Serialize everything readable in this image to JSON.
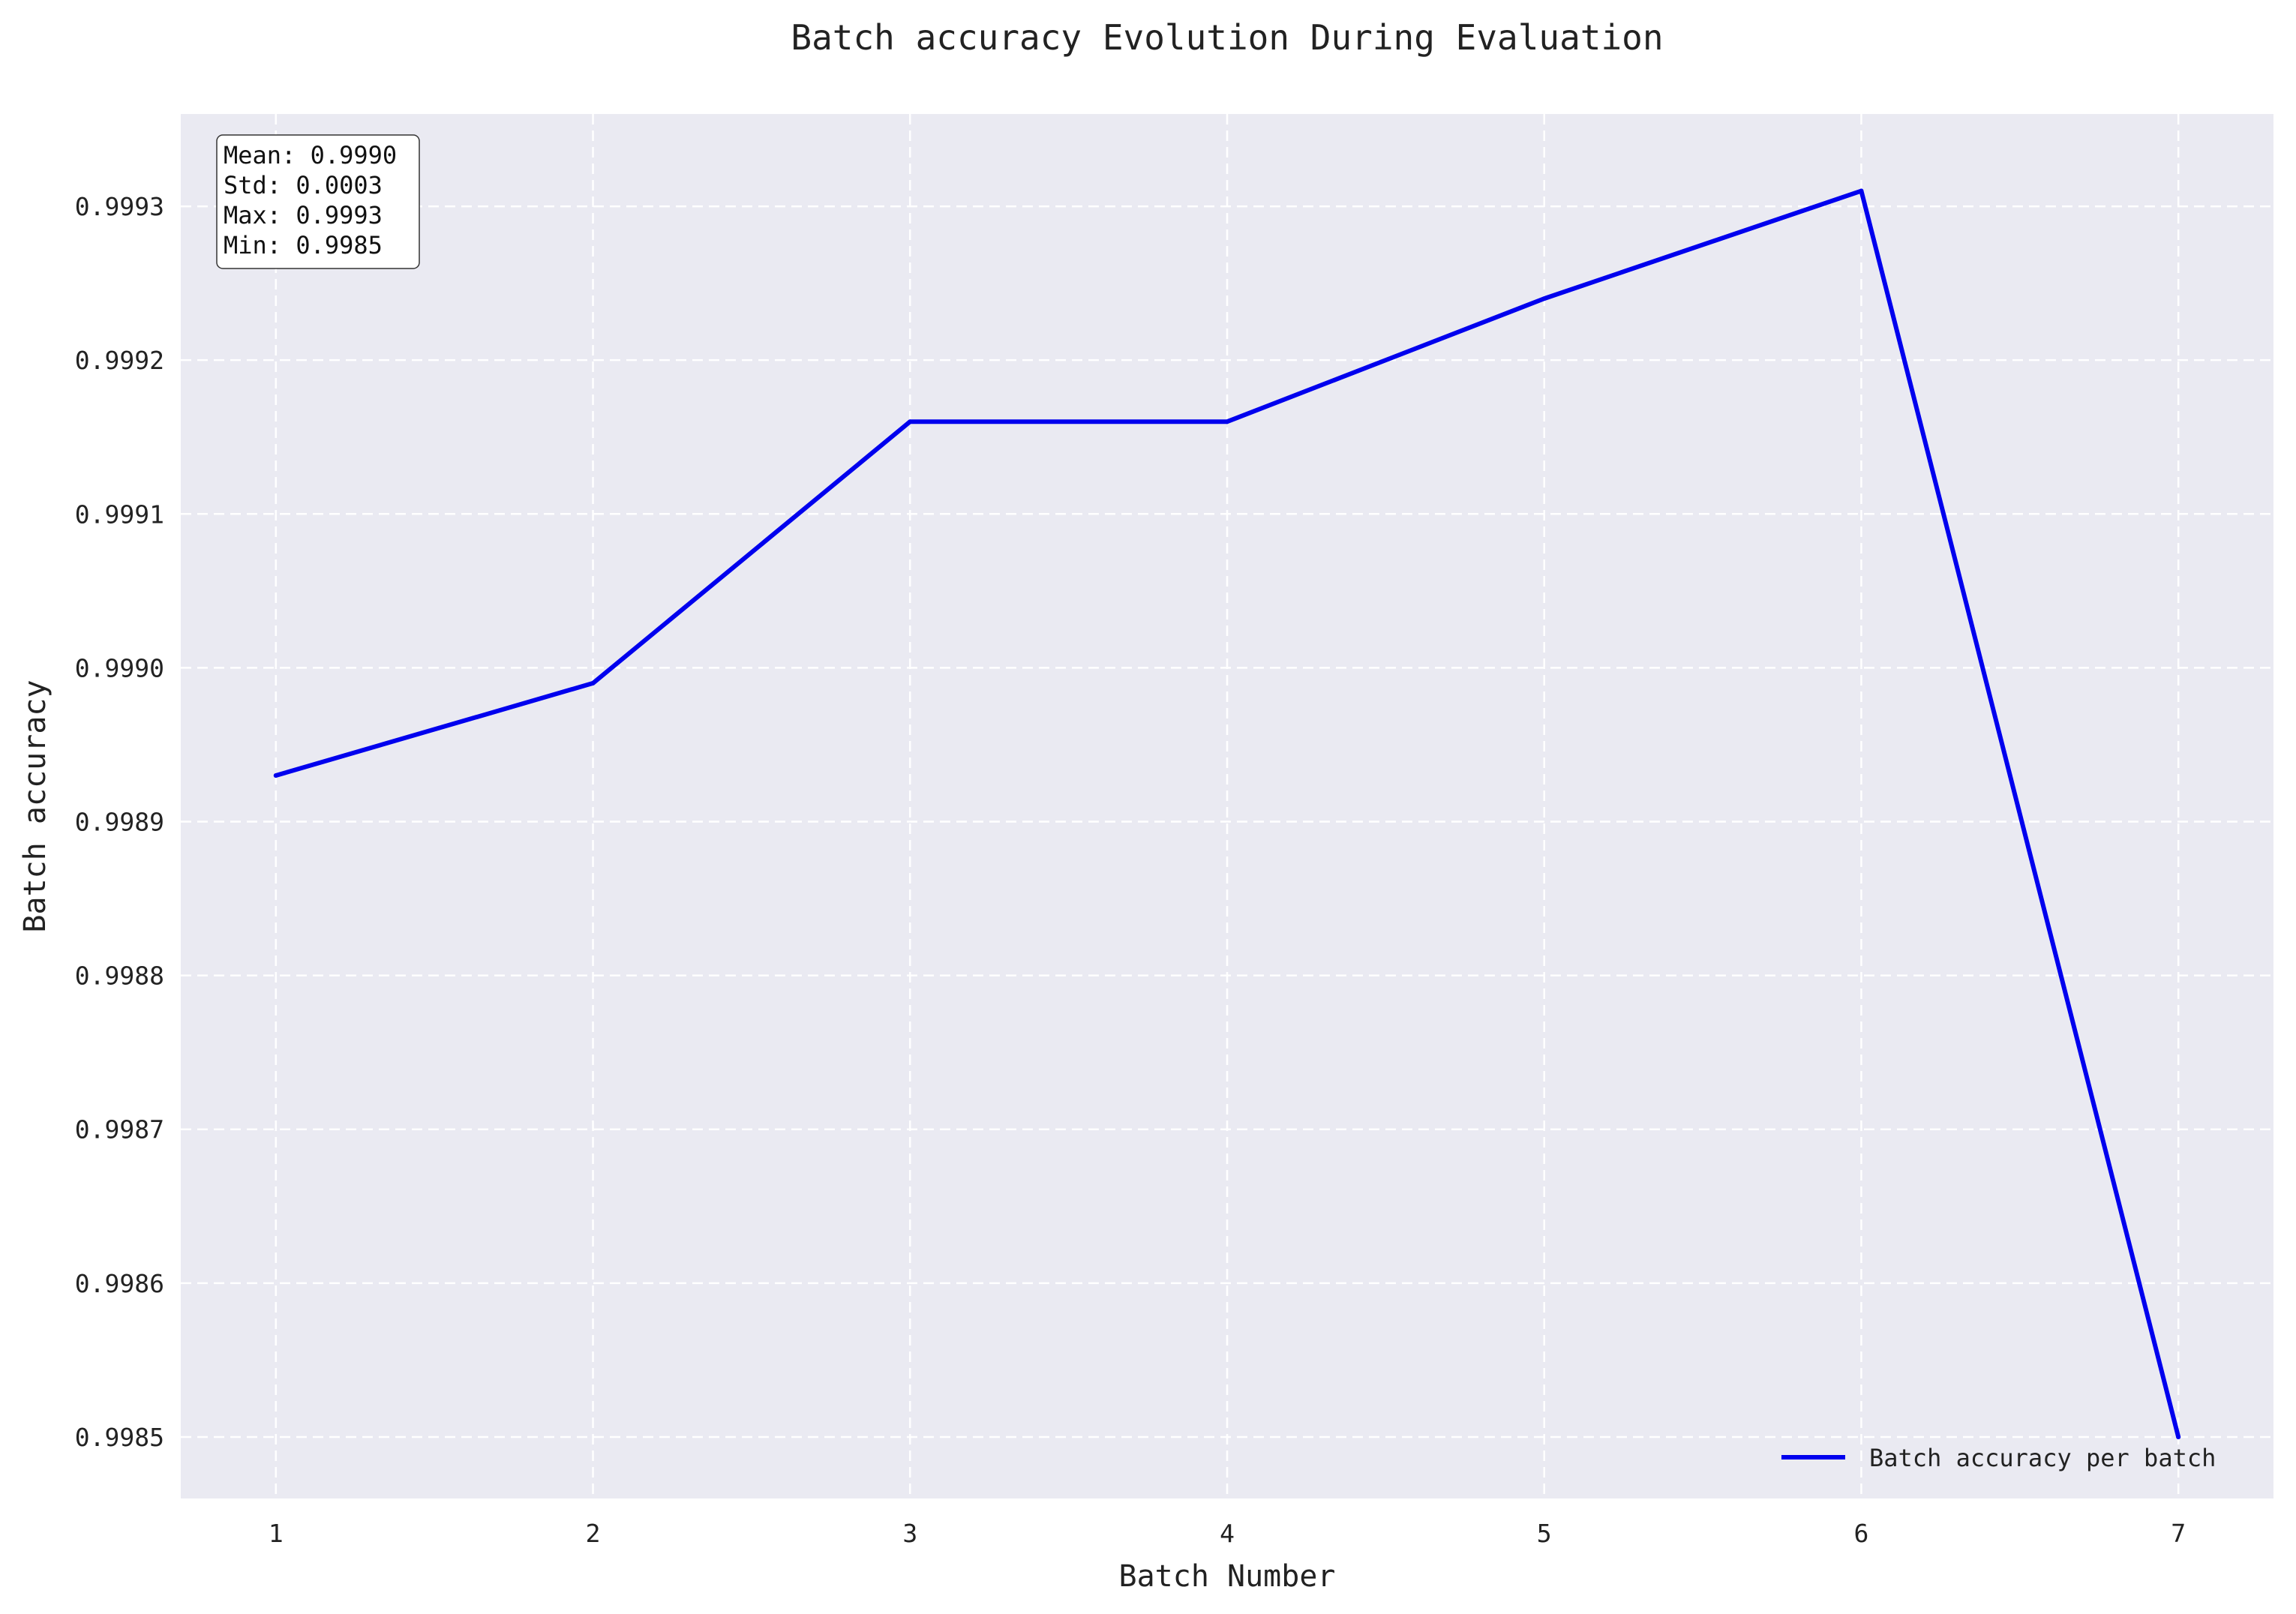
{
  "chart_data": {
    "type": "line",
    "title": "Batch accuracy Evolution During Evaluation",
    "xlabel": "Batch Number",
    "ylabel": "Batch accuracy",
    "x": [
      1,
      2,
      3,
      4,
      5,
      6,
      7
    ],
    "series": [
      {
        "name": "Batch accuracy per batch",
        "color": "#0000ee",
        "values": [
          0.99893,
          0.99899,
          0.99916,
          0.99916,
          0.99924,
          0.99931,
          0.9985
        ]
      }
    ],
    "xlim": [
      0.7,
      7.3
    ],
    "ylim": [
      0.99846,
      0.99936
    ],
    "xticks": [
      {
        "value": 1,
        "label": "1"
      },
      {
        "value": 2,
        "label": "2"
      },
      {
        "value": 3,
        "label": "3"
      },
      {
        "value": 4,
        "label": "4"
      },
      {
        "value": 5,
        "label": "5"
      },
      {
        "value": 6,
        "label": "6"
      },
      {
        "value": 7,
        "label": "7"
      }
    ],
    "yticks": [
      {
        "value": 0.9985,
        "label": "0.9985"
      },
      {
        "value": 0.9986,
        "label": "0.9986"
      },
      {
        "value": 0.9987,
        "label": "0.9987"
      },
      {
        "value": 0.9988,
        "label": "0.9988"
      },
      {
        "value": 0.9989,
        "label": "0.9989"
      },
      {
        "value": 0.999,
        "label": "0.9990"
      },
      {
        "value": 0.9991,
        "label": "0.9991"
      },
      {
        "value": 0.9992,
        "label": "0.9992"
      },
      {
        "value": 0.9993,
        "label": "0.9993"
      }
    ],
    "grid": true,
    "grid_style": "dashed",
    "background_color": "#eaeaf2",
    "legend_position": "lower-right",
    "stats_box": {
      "position": "top-left",
      "lines": [
        "Mean: 0.9990",
        "Std: 0.0003",
        "Max: 0.9993",
        "Min: 0.9985"
      ]
    }
  }
}
